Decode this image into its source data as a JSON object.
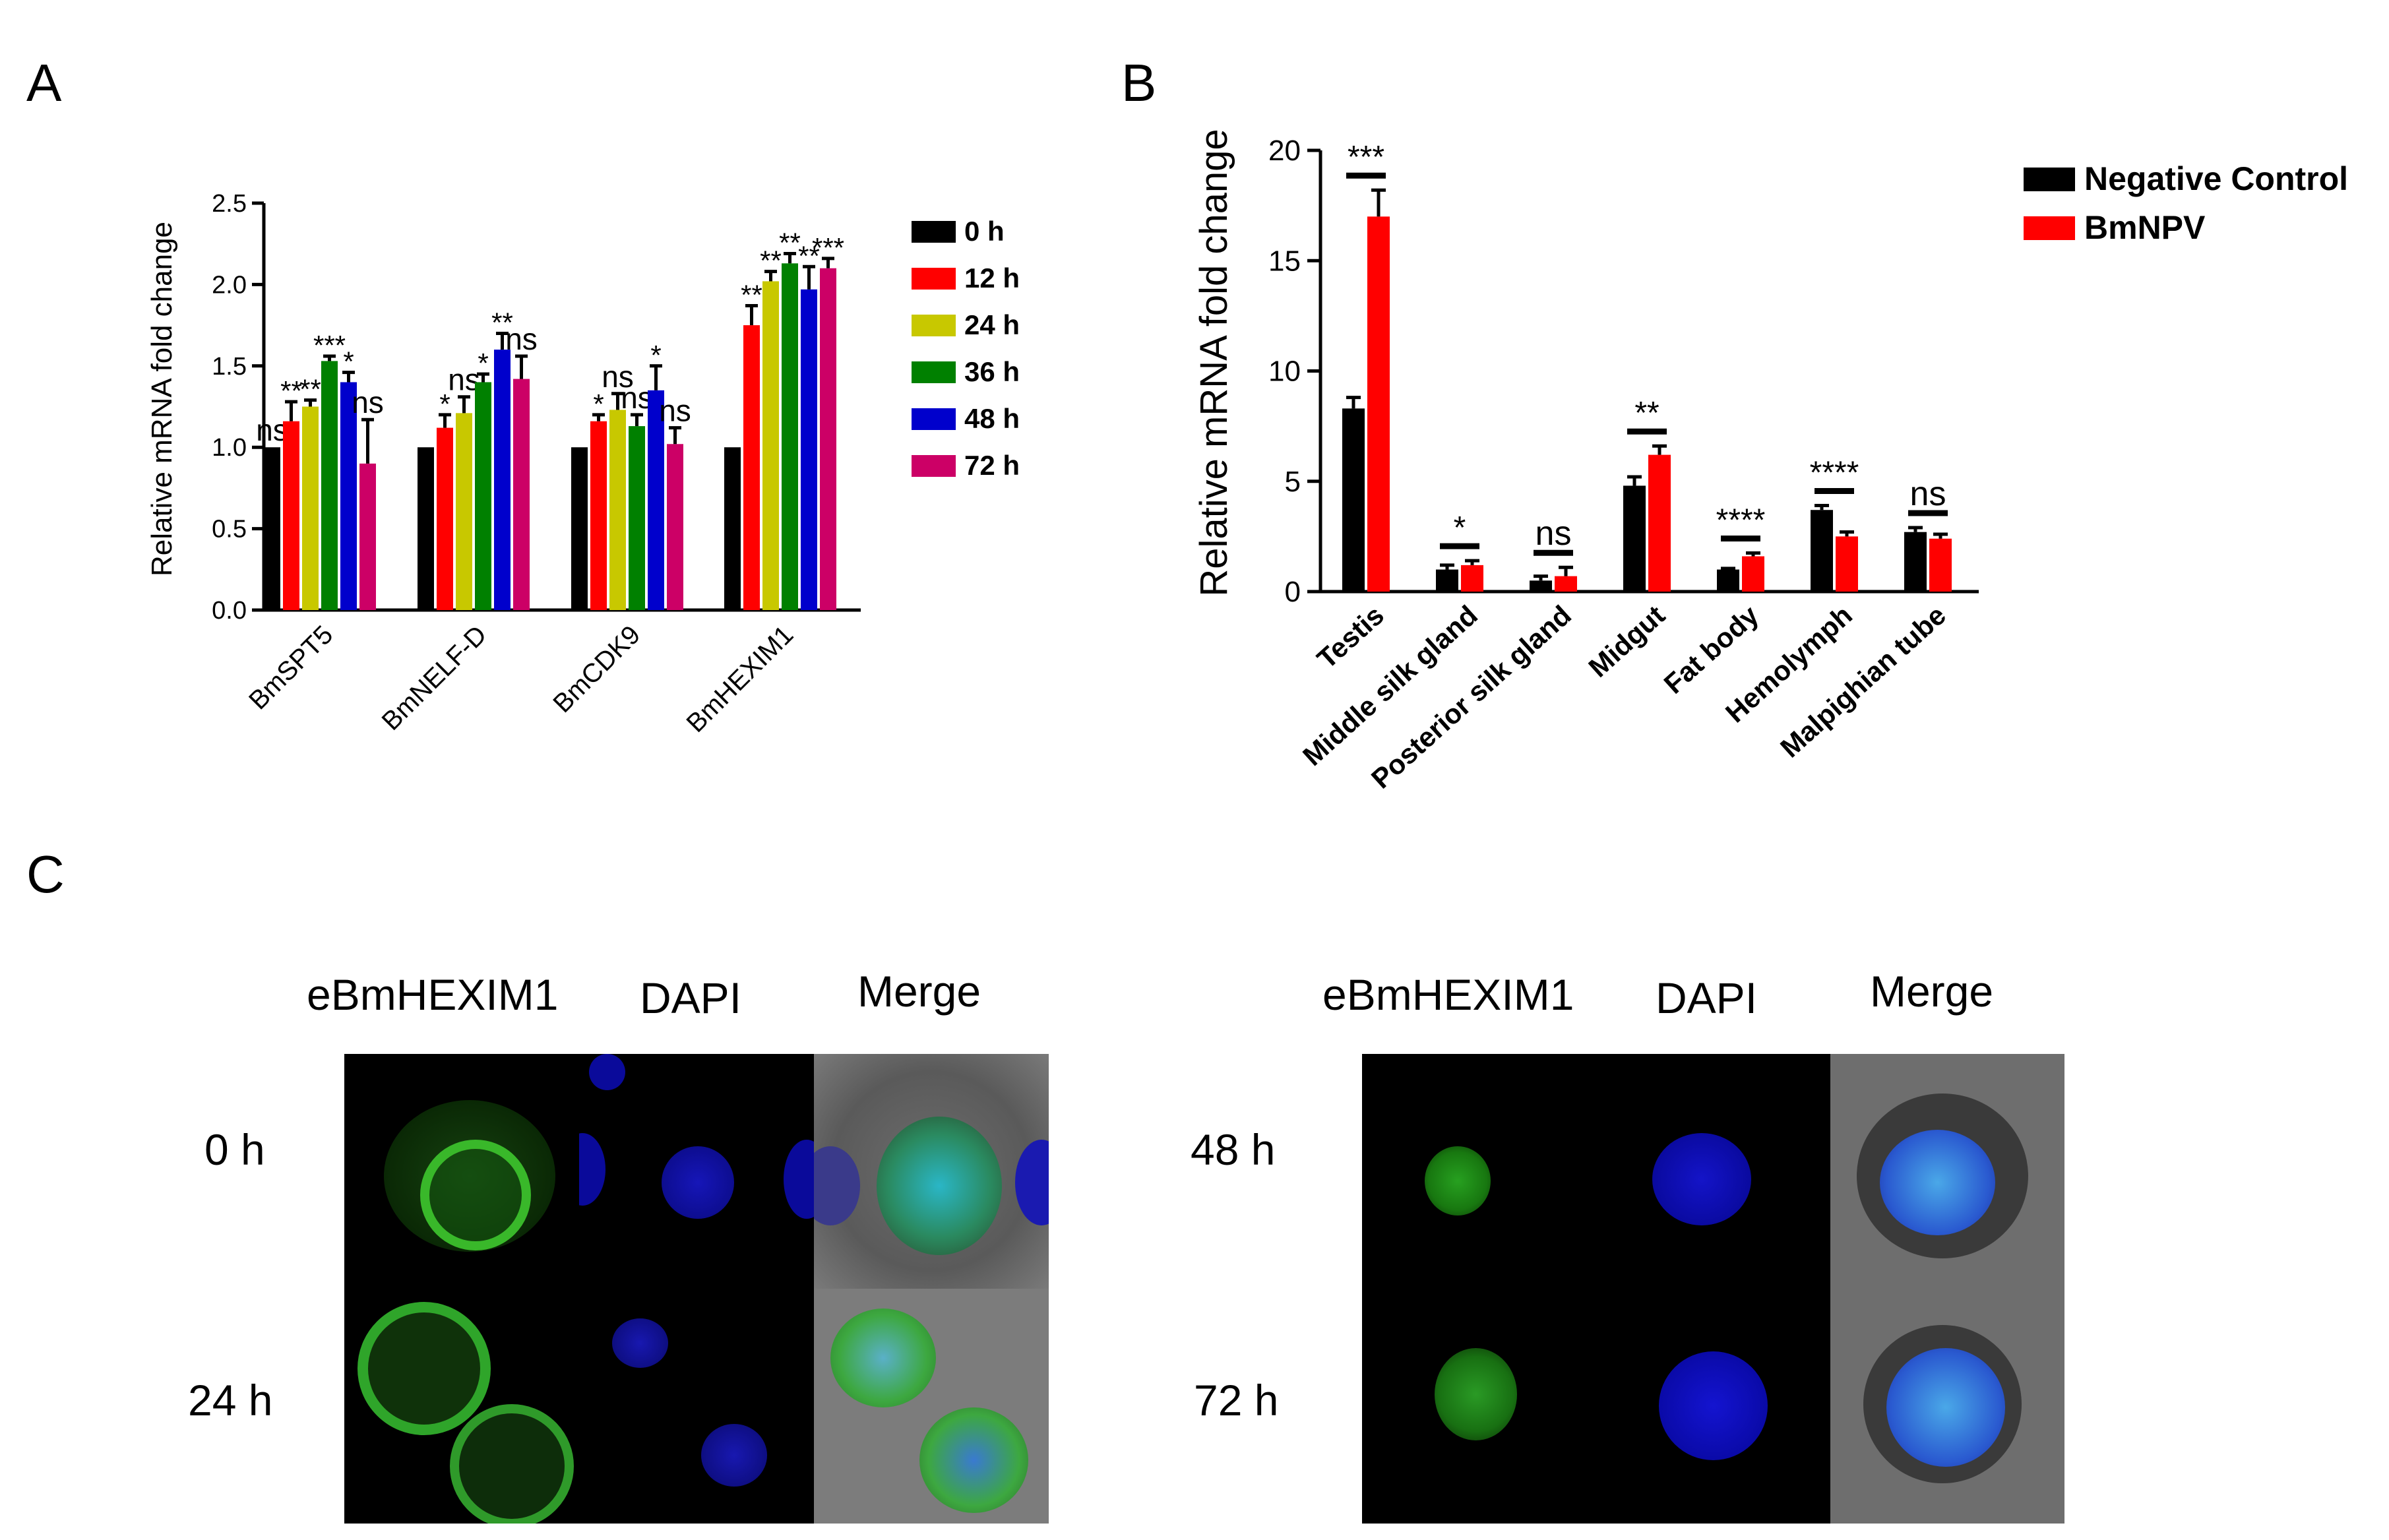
{
  "panels": {
    "a": "A",
    "b": "B",
    "c": "C"
  },
  "chart_data": [
    {
      "id": "A",
      "type": "bar",
      "ylabel": "Relative mRNA fold change",
      "ylim": [
        0,
        2.5
      ],
      "yticks": [
        "0.0",
        "0.5",
        "1.0",
        "1.5",
        "2.0",
        "2.5"
      ],
      "categories": [
        "BmSPT5",
        "BmNELF-D",
        "BmCDK9",
        "BmHEXIM1"
      ],
      "legend_position": "right",
      "series": [
        {
          "name": "0 h",
          "color": "#000000",
          "values": [
            1.0,
            1.0,
            1.0,
            1.0
          ],
          "errors": [
            0,
            0,
            0,
            0
          ]
        },
        {
          "name": "12 h",
          "color": "#ff0000",
          "values": [
            1.16,
            1.12,
            1.16,
            1.75
          ],
          "errors": [
            0.12,
            0.08,
            0.04,
            0.12
          ]
        },
        {
          "name": "24 h",
          "color": "#c8c800",
          "values": [
            1.25,
            1.21,
            1.23,
            2.02
          ],
          "errors": [
            0.04,
            0.1,
            0.1,
            0.06
          ]
        },
        {
          "name": "36 h",
          "color": "#008000",
          "values": [
            1.53,
            1.4,
            1.13,
            2.13
          ],
          "errors": [
            0.03,
            0.05,
            0.07,
            0.06
          ]
        },
        {
          "name": "48 h",
          "color": "#0000cc",
          "values": [
            1.4,
            1.6,
            1.35,
            1.97
          ],
          "errors": [
            0.06,
            0.1,
            0.15,
            0.14
          ]
        },
        {
          "name": "72 h",
          "color": "#cc0066",
          "values": [
            0.9,
            1.42,
            1.02,
            2.1
          ],
          "errors": [
            0.27,
            0.14,
            0.1,
            0.06
          ]
        }
      ],
      "annotations": [
        [
          "ns",
          "**",
          "**",
          "***",
          "*",
          "ns"
        ],
        [
          "",
          "*",
          "ns",
          "*",
          "**",
          "ns"
        ],
        [
          "",
          "*",
          "ns",
          "ns",
          "*",
          "ns"
        ],
        [
          "",
          "**",
          "**",
          "**",
          "**",
          "***"
        ]
      ]
    },
    {
      "id": "B",
      "type": "bar",
      "ylabel": "Relative mRNA fold change",
      "ylim": [
        0,
        20
      ],
      "yticks": [
        "0",
        "5",
        "10",
        "15",
        "20"
      ],
      "categories": [
        "Testis",
        "Middle silk gland",
        "Posterior silk gland",
        "Midgut",
        "Fat body",
        "Hemolymph",
        "Malpighian tube"
      ],
      "legend_position": "top-right",
      "series": [
        {
          "name": "Negative Control",
          "color": "#000000",
          "values": [
            8.3,
            1.0,
            0.5,
            4.8,
            1.0,
            3.7,
            2.7
          ],
          "errors": [
            0.5,
            0.2,
            0.2,
            0.4,
            0.05,
            0.2,
            0.2
          ]
        },
        {
          "name": "BmNPV",
          "color": "#ff0000",
          "values": [
            17.0,
            1.2,
            0.7,
            6.2,
            1.6,
            2.5,
            2.4
          ],
          "errors": [
            1.2,
            0.2,
            0.4,
            0.4,
            0.15,
            0.2,
            0.2
          ]
        }
      ],
      "annotations": [
        "***",
        "*",
        "ns",
        "**",
        "****",
        "****",
        "ns"
      ]
    }
  ],
  "microscopy": {
    "columns": [
      "eBmHEXIM1",
      "DAPI",
      "Merge"
    ],
    "left_rows": [
      "0 h",
      "24 h"
    ],
    "right_rows": [
      "48 h",
      "72 h"
    ]
  }
}
